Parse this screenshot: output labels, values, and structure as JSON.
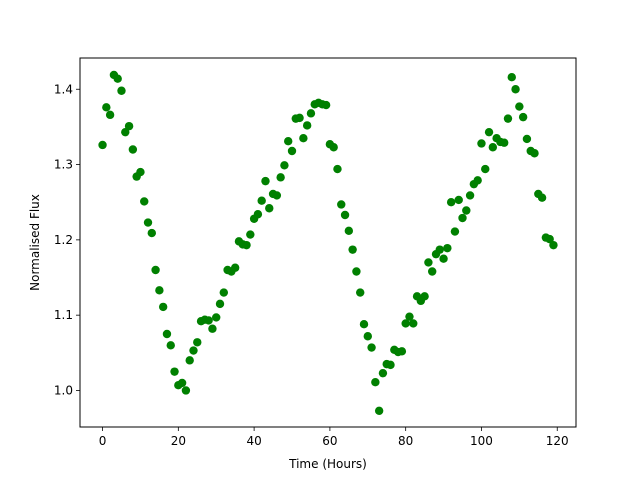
{
  "chart_data": {
    "type": "scatter",
    "title": "",
    "xlabel": "Time (Hours)",
    "ylabel": "Normalised Flux",
    "xlim": [
      -5.95,
      124.95
    ],
    "ylim": [
      0.9515,
      1.4415
    ],
    "xticks": [
      0,
      20,
      40,
      60,
      80,
      100,
      120
    ],
    "xtick_labels": [
      "0",
      "20",
      "40",
      "60",
      "80",
      "100",
      "120"
    ],
    "yticks": [
      1.0,
      1.1,
      1.2,
      1.3,
      1.4
    ],
    "ytick_labels": [
      "1.0",
      "1.1",
      "1.2",
      "1.3",
      "1.4"
    ],
    "grid": false,
    "marker_color": "#008000",
    "series": [
      {
        "x": [
          0,
          1,
          2,
          3,
          4,
          5,
          6,
          7,
          8,
          9,
          10,
          11,
          12,
          13,
          14,
          15,
          16,
          17,
          18,
          19,
          20,
          21,
          22,
          23,
          24,
          25,
          26,
          27,
          28,
          29,
          30,
          31,
          32,
          33,
          34,
          35,
          36,
          37,
          38,
          39,
          40,
          41,
          42,
          43,
          44,
          45,
          46,
          47,
          48,
          49,
          50,
          51,
          52,
          53,
          54,
          55,
          56,
          57,
          58,
          59,
          60,
          61,
          62,
          63,
          64,
          65,
          66,
          67,
          68,
          69,
          70,
          71,
          72,
          73,
          74,
          75,
          76,
          77,
          78,
          79,
          80,
          81,
          82,
          83,
          84,
          85,
          86,
          87,
          88,
          89,
          90,
          91,
          92,
          93,
          94,
          95,
          96,
          97,
          98,
          99,
          100,
          101,
          102,
          103,
          104,
          105,
          106,
          107,
          108,
          109,
          110,
          111,
          112,
          113,
          114,
          115,
          116,
          117,
          118,
          119
        ],
        "y": [
          1.326,
          1.376,
          1.366,
          1.419,
          1.414,
          1.398,
          1.343,
          1.351,
          1.32,
          1.284,
          1.29,
          1.251,
          1.223,
          1.209,
          1.16,
          1.133,
          1.111,
          1.075,
          1.06,
          1.025,
          1.007,
          1.01,
          1.0,
          1.04,
          1.053,
          1.064,
          1.092,
          1.094,
          1.093,
          1.082,
          1.097,
          1.115,
          1.13,
          1.16,
          1.158,
          1.163,
          1.198,
          1.194,
          1.193,
          1.207,
          1.228,
          1.234,
          1.252,
          1.278,
          1.242,
          1.261,
          1.259,
          1.283,
          1.299,
          1.331,
          1.318,
          1.361,
          1.362,
          1.335,
          1.352,
          1.368,
          1.38,
          1.382,
          1.38,
          1.379,
          1.327,
          1.323,
          1.294,
          1.247,
          1.233,
          1.212,
          1.187,
          1.158,
          1.13,
          1.088,
          1.072,
          1.057,
          1.011,
          0.973,
          1.023,
          1.035,
          1.034,
          1.054,
          1.051,
          1.052,
          1.089,
          1.098,
          1.089,
          1.125,
          1.119,
          1.125,
          1.17,
          1.158,
          1.181,
          1.187,
          1.175,
          1.189,
          1.25,
          1.211,
          1.253,
          1.229,
          1.239,
          1.259,
          1.274,
          1.279,
          1.328,
          1.294,
          1.343,
          1.323,
          1.335,
          1.33,
          1.329,
          1.361,
          1.416,
          1.4,
          1.377,
          1.363,
          1.334,
          1.318,
          1.315,
          1.261,
          1.256,
          1.203,
          1.201,
          1.193
        ]
      }
    ]
  }
}
